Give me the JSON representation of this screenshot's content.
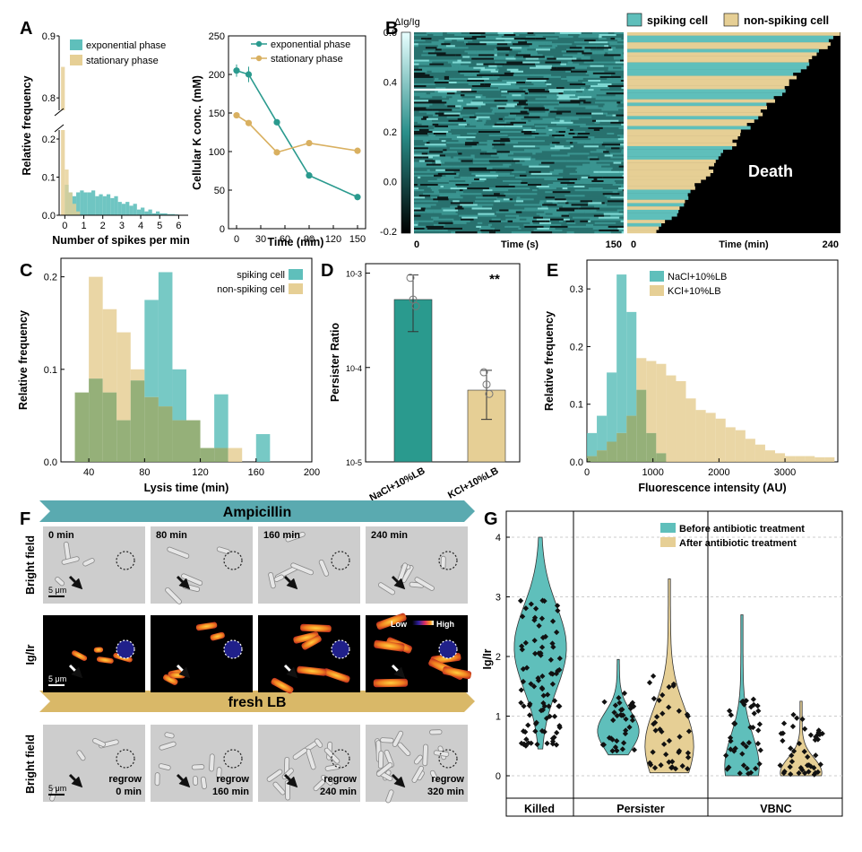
{
  "colors": {
    "teal": "#5fbfbb",
    "tealDark": "#2a9a8e",
    "tan": "#e6cf95",
    "tanDark": "#d9b060",
    "overlap": "#8aa76a",
    "micro": "#cfcfcf"
  },
  "panels": {
    "A": "A",
    "B": "B",
    "C": "C",
    "D": "D",
    "E": "E",
    "F": "F",
    "G": "G"
  },
  "chart_data": [
    {
      "id": "A1",
      "type": "bar",
      "xlabel": "Number of spikes per min",
      "ylabel": "Relative frequency",
      "xticks": [
        "0",
        "1",
        "2",
        "3",
        "4",
        "5",
        "6"
      ],
      "yticks_lower": [
        "0.0",
        "0.1",
        "0.2"
      ],
      "yticks_upper": [
        "0.8",
        "0.9"
      ],
      "xlim": [
        -0.3,
        6.5
      ],
      "bin_width": 0.2,
      "series": [
        {
          "name": "exponential phase",
          "color": "#5fbfbb",
          "bins": [
            0.0,
            0.2,
            0.4,
            0.6,
            0.8,
            1.0,
            1.2,
            1.4,
            1.6,
            1.8,
            2.0,
            2.2,
            2.4,
            2.6,
            2.8,
            3.0,
            3.2,
            3.4,
            3.6,
            3.8,
            4.0,
            4.2,
            4.4,
            4.6,
            4.8,
            5.0,
            5.2,
            5.4,
            5.6,
            5.8
          ],
          "values": [
            0.08,
            0.06,
            0.05,
            0.06,
            0.065,
            0.06,
            0.06,
            0.065,
            0.05,
            0.055,
            0.05,
            0.055,
            0.045,
            0.05,
            0.035,
            0.03,
            0.035,
            0.025,
            0.03,
            0.015,
            0.02,
            0.01,
            0.015,
            0.005,
            0.01,
            0.005,
            0.005,
            0.003,
            0.003,
            0.002
          ]
        },
        {
          "name": "stationary phase",
          "color": "#e6cf95",
          "bins": [
            -0.2,
            0.0,
            0.2,
            0.4,
            0.6
          ],
          "values": [
            0.85,
            0.12,
            0.06,
            0.03,
            0.01
          ]
        }
      ]
    },
    {
      "id": "A2",
      "type": "line",
      "xlabel": "Time (min)",
      "ylabel": "Cellular K conc. (mM)",
      "xticks": [
        "0",
        "30",
        "60",
        "90",
        "120",
        "150"
      ],
      "yticks": [
        "0",
        "50",
        "100",
        "150",
        "200",
        "250"
      ],
      "xlim": [
        -10,
        160
      ],
      "ylim": [
        0,
        250
      ],
      "series": [
        {
          "name": "exponential phase",
          "color": "#2a9a8e",
          "x": [
            0,
            15,
            50,
            90,
            150
          ],
          "y": [
            205,
            200,
            138,
            69,
            41
          ],
          "err": [
            8,
            10,
            4,
            3,
            3
          ]
        },
        {
          "name": "stationary phase",
          "color": "#d9b060",
          "x": [
            0,
            15,
            50,
            90,
            150
          ],
          "y": [
            147,
            137,
            99,
            111,
            101
          ],
          "err": [
            2,
            2,
            2,
            2,
            2
          ]
        }
      ]
    },
    {
      "id": "B",
      "type": "heatmap",
      "colorbar_label": "ΔIg/Ig",
      "colorbar_ticks": [
        "0.6",
        "0.4",
        "0.2",
        "0.0",
        "-0.2"
      ],
      "xlabel": "Time (s)",
      "xmin": "0",
      "xmax": "150",
      "legend": [
        "spiking cell",
        "non-spiking cell"
      ],
      "right_xlabel": "Time (min)",
      "right_xmin": "0",
      "right_xmax": "240",
      "death_label": "Death"
    },
    {
      "id": "C",
      "type": "bar",
      "xlabel": "Lysis time (min)",
      "ylabel": "Relative frequency",
      "xticks": [
        "40",
        "80",
        "120",
        "160",
        "200"
      ],
      "yticks": [
        "0.0",
        "0.1",
        "0.2"
      ],
      "xlim": [
        20,
        200
      ],
      "ylim": [
        0,
        0.22
      ],
      "bin_width": 10,
      "series": [
        {
          "name": "spiking cell",
          "color": "#5fbfbb",
          "bins": [
            30,
            40,
            50,
            60,
            70,
            80,
            90,
            100,
            110,
            120,
            130,
            140,
            150,
            160
          ],
          "values": [
            0.075,
            0.09,
            0.075,
            0.045,
            0.088,
            0.175,
            0.205,
            0.1,
            0.045,
            0.015,
            0.073,
            0,
            0,
            0.03
          ]
        },
        {
          "name": "non-spiking cell",
          "color": "#e6cf95",
          "bins": [
            30,
            40,
            50,
            60,
            70,
            80,
            90,
            100,
            110,
            120,
            130,
            140
          ],
          "values": [
            0.075,
            0.2,
            0.165,
            0.14,
            0.1,
            0.07,
            0.06,
            0.045,
            0.045,
            0.015,
            0.015,
            0.015
          ]
        }
      ]
    },
    {
      "id": "D",
      "type": "bar",
      "ylabel": "Persister Ratio",
      "significance": "**",
      "yticks": [
        "10-3",
        "10-4",
        "10-5"
      ],
      "categories": [
        "NaCl+10%LB",
        "KCl+10%LB"
      ],
      "values_log10": [
        -3.28,
        -4.24
      ],
      "err_low_log10": [
        -3.62,
        -4.55
      ],
      "err_high_log10": [
        -3.02,
        -4.03
      ],
      "points_log10": [
        [
          -3.05,
          -3.28,
          -3.35
        ],
        [
          -4.05,
          -4.18,
          -4.28
        ]
      ],
      "colors": [
        "#2a9a8e",
        "#e6cf95"
      ]
    },
    {
      "id": "E",
      "type": "bar",
      "xlabel": "Fluorescence intensity (AU)",
      "ylabel": "Relative frequency",
      "xticks": [
        "0",
        "1000",
        "2000",
        "3000"
      ],
      "yticks": [
        "0.0",
        "0.1",
        "0.2",
        "0.3"
      ],
      "xlim": [
        0,
        3800
      ],
      "ylim": [
        0,
        0.35
      ],
      "bin_width": 150,
      "series": [
        {
          "name": "NaCl+10%LB",
          "color": "#5fbfbb",
          "bins": [
            0,
            150,
            300,
            450,
            600,
            750,
            900,
            1050
          ],
          "values": [
            0.05,
            0.08,
            0.155,
            0.325,
            0.26,
            0.125,
            0.05,
            0.015
          ]
        },
        {
          "name": "KCl+10%LB",
          "color": "#e6cf95",
          "bins": [
            0,
            150,
            300,
            450,
            600,
            750,
            900,
            1050,
            1200,
            1350,
            1500,
            1650,
            1800,
            1950,
            2100,
            2250,
            2400,
            2550,
            2700,
            2850,
            3000,
            3150,
            3300,
            3450,
            3600
          ],
          "values": [
            0.01,
            0.02,
            0.035,
            0.05,
            0.08,
            0.18,
            0.175,
            0.17,
            0.15,
            0.14,
            0.11,
            0.09,
            0.085,
            0.075,
            0.06,
            0.055,
            0.04,
            0.03,
            0.02,
            0.015,
            0.01,
            0.01,
            0.01,
            0.008,
            0.008
          ]
        }
      ]
    },
    {
      "id": "G",
      "type": "scatter",
      "ylabel": "Ig/Ir",
      "yticks": [
        "0",
        "1",
        "2",
        "3",
        "4"
      ],
      "ylim": [
        0,
        4
      ],
      "groups": [
        "Killed",
        "Persister",
        "VBNC"
      ],
      "legend": [
        "Before antibiotic treatment",
        "After antibiotic treatment"
      ]
    }
  ],
  "panelF": {
    "ampicillin": "Ampicillin",
    "freshLB": "fresh LB",
    "row1_label": "Bright field",
    "row2_label": "Ig/Ir",
    "row3_label": "Bright field",
    "times": [
      "0 min",
      "80 min",
      "160 min",
      "240 min"
    ],
    "regrow": [
      "regrow 0 min",
      "regrow 160 min",
      "regrow 240 min",
      "regrow 320 min"
    ],
    "scale": "5 μm",
    "colorbar": [
      "Low",
      "High"
    ]
  }
}
